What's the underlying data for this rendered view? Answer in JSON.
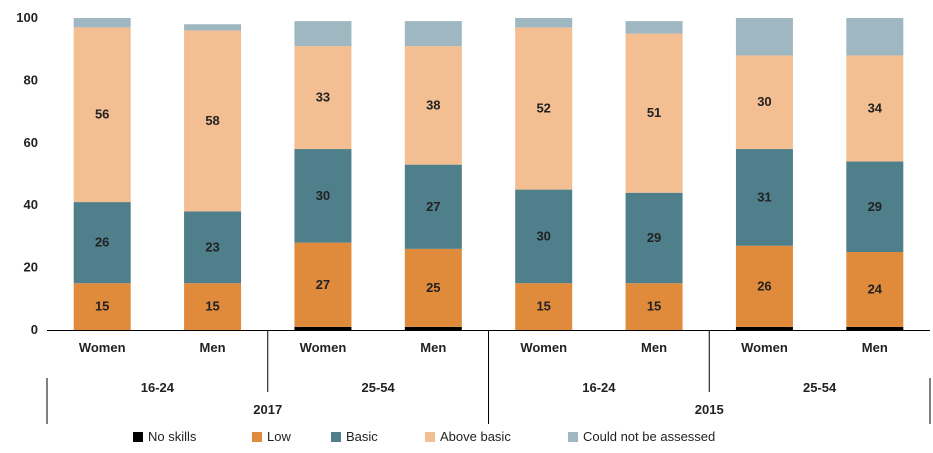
{
  "chart_data": {
    "type": "bar",
    "stacked": true,
    "title": "",
    "xlabel": "",
    "ylabel": "",
    "ylim": [
      0,
      100
    ],
    "yticks": [
      0,
      20,
      40,
      60,
      80,
      100
    ],
    "grid": false,
    "legend_position": "bottom",
    "categories": [
      "Women",
      "Men",
      "Women",
      "Men",
      "Women",
      "Men",
      "Women",
      "Men"
    ],
    "age_groups": [
      {
        "label": "16-24",
        "span": [
          0,
          1
        ]
      },
      {
        "label": "25-54",
        "span": [
          2,
          3
        ]
      },
      {
        "label": "16-24",
        "span": [
          4,
          5
        ]
      },
      {
        "label": "25-54",
        "span": [
          6,
          7
        ]
      }
    ],
    "years": [
      {
        "label": "2017",
        "span": [
          0,
          3
        ]
      },
      {
        "label": "2015",
        "span": [
          4,
          7
        ]
      }
    ],
    "series": [
      {
        "name": "No skills",
        "color": "#000000",
        "values": [
          0,
          0,
          1,
          1,
          0,
          0,
          1,
          1
        ]
      },
      {
        "name": "Low",
        "color": "#e08a3c",
        "values": [
          15,
          15,
          27,
          25,
          15,
          15,
          26,
          24
        ]
      },
      {
        "name": "Basic",
        "color": "#4e7f8b",
        "values": [
          26,
          23,
          30,
          27,
          30,
          29,
          31,
          29
        ]
      },
      {
        "name": "Above basic",
        "color": "#f2be92",
        "values": [
          56,
          58,
          33,
          38,
          52,
          51,
          30,
          34
        ]
      },
      {
        "name": "Could not be assessed",
        "color": "#9fb7c0",
        "values": [
          3,
          2,
          8,
          8,
          3,
          4,
          12,
          12
        ]
      }
    ],
    "data_labels": {
      "Low": [
        "15",
        "15",
        "27",
        "25",
        "15",
        "15",
        "26",
        "24"
      ],
      "Basic": [
        "26",
        "23",
        "30",
        "27",
        "30",
        "29",
        "31",
        "29"
      ],
      "Above basic": [
        "56",
        "58",
        "33",
        "38",
        "52",
        "51",
        "30",
        "34"
      ]
    }
  }
}
